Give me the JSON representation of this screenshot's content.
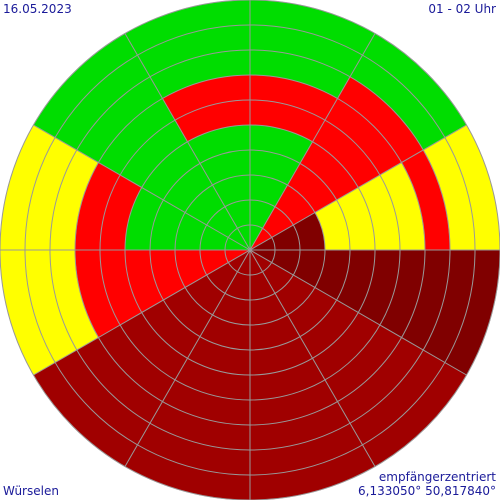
{
  "labels": {
    "date": "16.05.2023",
    "time": "01 - 02 Uhr",
    "location": "Würselen",
    "mode": "empfängerzentriert",
    "coordinates": "6,133050° 50,817840°"
  },
  "colors": {
    "level_0": "#00dd00",
    "level_1": "#ffff00",
    "level_2": "#ff0000",
    "level_3": "#d80000",
    "level_4": "#a00000",
    "level_5": "#800000",
    "level_6": "#600000",
    "grid": "#999999",
    "text": "#1a1a99"
  },
  "chart_data": {
    "type": "polar-heatmap",
    "rings": 10,
    "sectors": 12,
    "sector_order": "clockwise from north, 30° each",
    "legend": [],
    "levels": [
      [
        0,
        2,
        5,
        5,
        4,
        4,
        4,
        4,
        2,
        0,
        0,
        0
      ],
      [
        0,
        2,
        5,
        5,
        4,
        4,
        4,
        4,
        2,
        0,
        0,
        0
      ],
      [
        0,
        2,
        5,
        5,
        4,
        4,
        4,
        4,
        2,
        0,
        0,
        0
      ],
      [
        0,
        2,
        1,
        5,
        4,
        4,
        4,
        4,
        2,
        0,
        0,
        0
      ],
      [
        0,
        2,
        1,
        5,
        4,
        4,
        4,
        4,
        2,
        0,
        0,
        0
      ],
      [
        2,
        2,
        1,
        5,
        4,
        4,
        4,
        4,
        2,
        2,
        0,
        2
      ],
      [
        2,
        2,
        1,
        5,
        4,
        4,
        4,
        4,
        2,
        2,
        0,
        2
      ],
      [
        0,
        2,
        2,
        5,
        4,
        4,
        4,
        4,
        1,
        1,
        0,
        0
      ],
      [
        0,
        0,
        1,
        5,
        4,
        4,
        4,
        4,
        1,
        1,
        0,
        0
      ],
      [
        0,
        0,
        1,
        5,
        4,
        4,
        4,
        4,
        1,
        1,
        0,
        0
      ]
    ]
  }
}
